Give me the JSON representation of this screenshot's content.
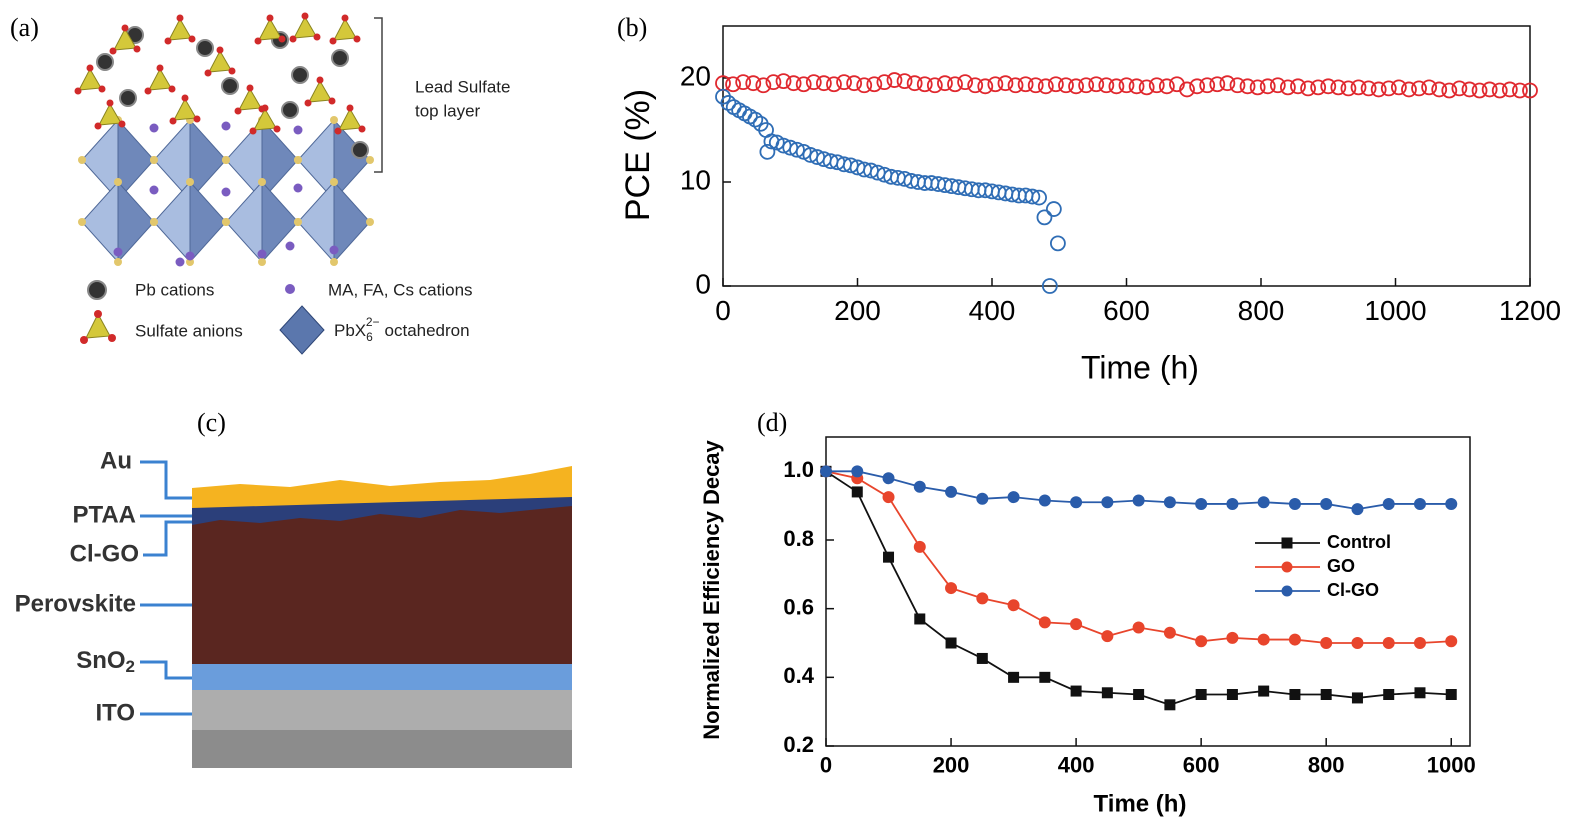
{
  "panel_labels": [
    "(a)",
    "(b)",
    "(c)",
    "(d)"
  ],
  "panel_a": {
    "bracket_label": [
      "Lead Sulfate",
      "top layer"
    ],
    "legend": {
      "pb": "Pb cations",
      "organic": "MA, FA, Cs cations",
      "sulfate": "Sulfate anions",
      "octahedron": {
        "base": "PbX",
        "sub": "6",
        "sup": "2−",
        "rest": "octahedron"
      }
    }
  },
  "panel_c": {
    "layers": [
      {
        "label": "Au"
      },
      {
        "label": "PTAA"
      },
      {
        "label": "Cl-GO"
      },
      {
        "label": "Perovskite"
      },
      {
        "label": "SnO",
        "subscript": "2"
      },
      {
        "label": "ITO"
      }
    ]
  },
  "chart_data": [
    {
      "type": "scatter",
      "xlabel": "Time (h)",
      "ylabel": "PCE (%)",
      "xlim": [
        0,
        1200
      ],
      "ylim": [
        0,
        25
      ],
      "xticks": [
        0,
        200,
        400,
        600,
        800,
        1000,
        1200
      ],
      "yticks": [
        0,
        10,
        20
      ],
      "marker": "open-circle",
      "series": [
        {
          "color": "#e0282e",
          "x": [
            0,
            15,
            30,
            45,
            60,
            75,
            90,
            105,
            120,
            135,
            150,
            165,
            180,
            195,
            210,
            225,
            240,
            255,
            270,
            285,
            300,
            315,
            330,
            345,
            360,
            375,
            390,
            405,
            420,
            435,
            450,
            465,
            480,
            495,
            510,
            525,
            540,
            555,
            570,
            585,
            600,
            615,
            630,
            645,
            660,
            675,
            690,
            705,
            720,
            735,
            750,
            765,
            780,
            795,
            810,
            825,
            840,
            855,
            870,
            885,
            900,
            915,
            930,
            945,
            960,
            975,
            990,
            1005,
            1020,
            1035,
            1050,
            1065,
            1080,
            1095,
            1110,
            1125,
            1140,
            1155,
            1170,
            1185,
            1200
          ],
          "values": [
            19.5,
            19.4,
            19.6,
            19.5,
            19.3,
            19.6,
            19.7,
            19.5,
            19.4,
            19.6,
            19.5,
            19.4,
            19.6,
            19.5,
            19.3,
            19.4,
            19.6,
            19.8,
            19.7,
            19.5,
            19.4,
            19.3,
            19.5,
            19.4,
            19.6,
            19.3,
            19.2,
            19.4,
            19.5,
            19.3,
            19.4,
            19.3,
            19.2,
            19.4,
            19.3,
            19.2,
            19.3,
            19.4,
            19.3,
            19.2,
            19.3,
            19.2,
            19.1,
            19.3,
            19.2,
            19.4,
            18.9,
            19.2,
            19.3,
            19.4,
            19.5,
            19.3,
            19.2,
            19.1,
            19.2,
            19.3,
            19.1,
            19.2,
            19.0,
            19.1,
            19.2,
            19.1,
            19.0,
            19.1,
            19.0,
            18.9,
            19.0,
            19.1,
            18.9,
            19.0,
            19.1,
            18.9,
            18.8,
            19.0,
            18.9,
            18.8,
            18.9,
            18.8,
            18.9,
            18.8,
            18.8
          ]
        },
        {
          "color": "#2f6db5",
          "x": [
            0,
            8,
            16,
            24,
            32,
            40,
            48,
            56,
            64,
            66,
            72,
            80,
            90,
            100,
            110,
            120,
            130,
            140,
            150,
            160,
            170,
            180,
            190,
            200,
            210,
            220,
            230,
            240,
            250,
            260,
            270,
            280,
            290,
            300,
            310,
            320,
            330,
            340,
            350,
            360,
            370,
            380,
            390,
            400,
            410,
            420,
            430,
            440,
            450,
            460,
            470,
            478,
            486,
            492,
            498
          ],
          "values": [
            18.2,
            17.6,
            17.2,
            16.9,
            16.6,
            16.3,
            16.0,
            15.6,
            15.0,
            12.9,
            13.9,
            13.8,
            13.5,
            13.3,
            13.1,
            12.9,
            12.6,
            12.4,
            12.2,
            12.0,
            11.9,
            11.7,
            11.6,
            11.4,
            11.2,
            11.1,
            10.9,
            10.7,
            10.5,
            10.4,
            10.3,
            10.1,
            10.0,
            9.9,
            9.9,
            9.8,
            9.7,
            9.6,
            9.5,
            9.4,
            9.3,
            9.2,
            9.2,
            9.1,
            9.0,
            8.9,
            8.8,
            8.7,
            8.7,
            8.6,
            8.5,
            6.6,
            0,
            7.4,
            4.1
          ]
        }
      ]
    },
    {
      "type": "line",
      "xlabel": "Time (h)",
      "ylabel": "Normalized Efficiency Decay",
      "xlim": [
        0,
        1030
      ],
      "ylim": [
        0.2,
        1.1
      ],
      "xticks": [
        0,
        200,
        400,
        600,
        800,
        1000
      ],
      "yticks": [
        0.2,
        0.4,
        0.6,
        0.8,
        {
          "value": 1,
          "label": "1.0"
        }
      ],
      "legend": "right",
      "x": [
        0,
        50,
        100,
        150,
        200,
        250,
        300,
        350,
        400,
        450,
        500,
        550,
        600,
        650,
        700,
        750,
        800,
        850,
        900,
        950,
        1000
      ],
      "series": [
        {
          "name": "Control",
          "color": "#111111",
          "marker": "square",
          "values": [
            1,
            0.94,
            0.75,
            0.57,
            0.5,
            0.455,
            0.4,
            0.4,
            0.36,
            0.355,
            0.35,
            0.32,
            0.35,
            0.35,
            0.36,
            0.35,
            0.35,
            0.34,
            0.35,
            0.355,
            0.35
          ]
        },
        {
          "name": "GO",
          "color": "#e8452c",
          "marker": "circle",
          "values": [
            1,
            0.98,
            0.925,
            0.78,
            0.66,
            0.63,
            0.61,
            0.56,
            0.555,
            0.52,
            0.545,
            0.53,
            0.505,
            0.515,
            0.51,
            0.51,
            0.5,
            0.5,
            0.5,
            0.5,
            0.505
          ]
        },
        {
          "name": "Cl-GO",
          "color": "#2a5caa",
          "marker": "circle",
          "values": [
            1,
            1,
            0.98,
            0.955,
            0.94,
            0.92,
            0.925,
            0.915,
            0.91,
            0.91,
            0.915,
            0.91,
            0.905,
            0.905,
            0.91,
            0.905,
            0.905,
            0.89,
            0.905,
            0.905,
            0.905
          ]
        }
      ]
    }
  ]
}
